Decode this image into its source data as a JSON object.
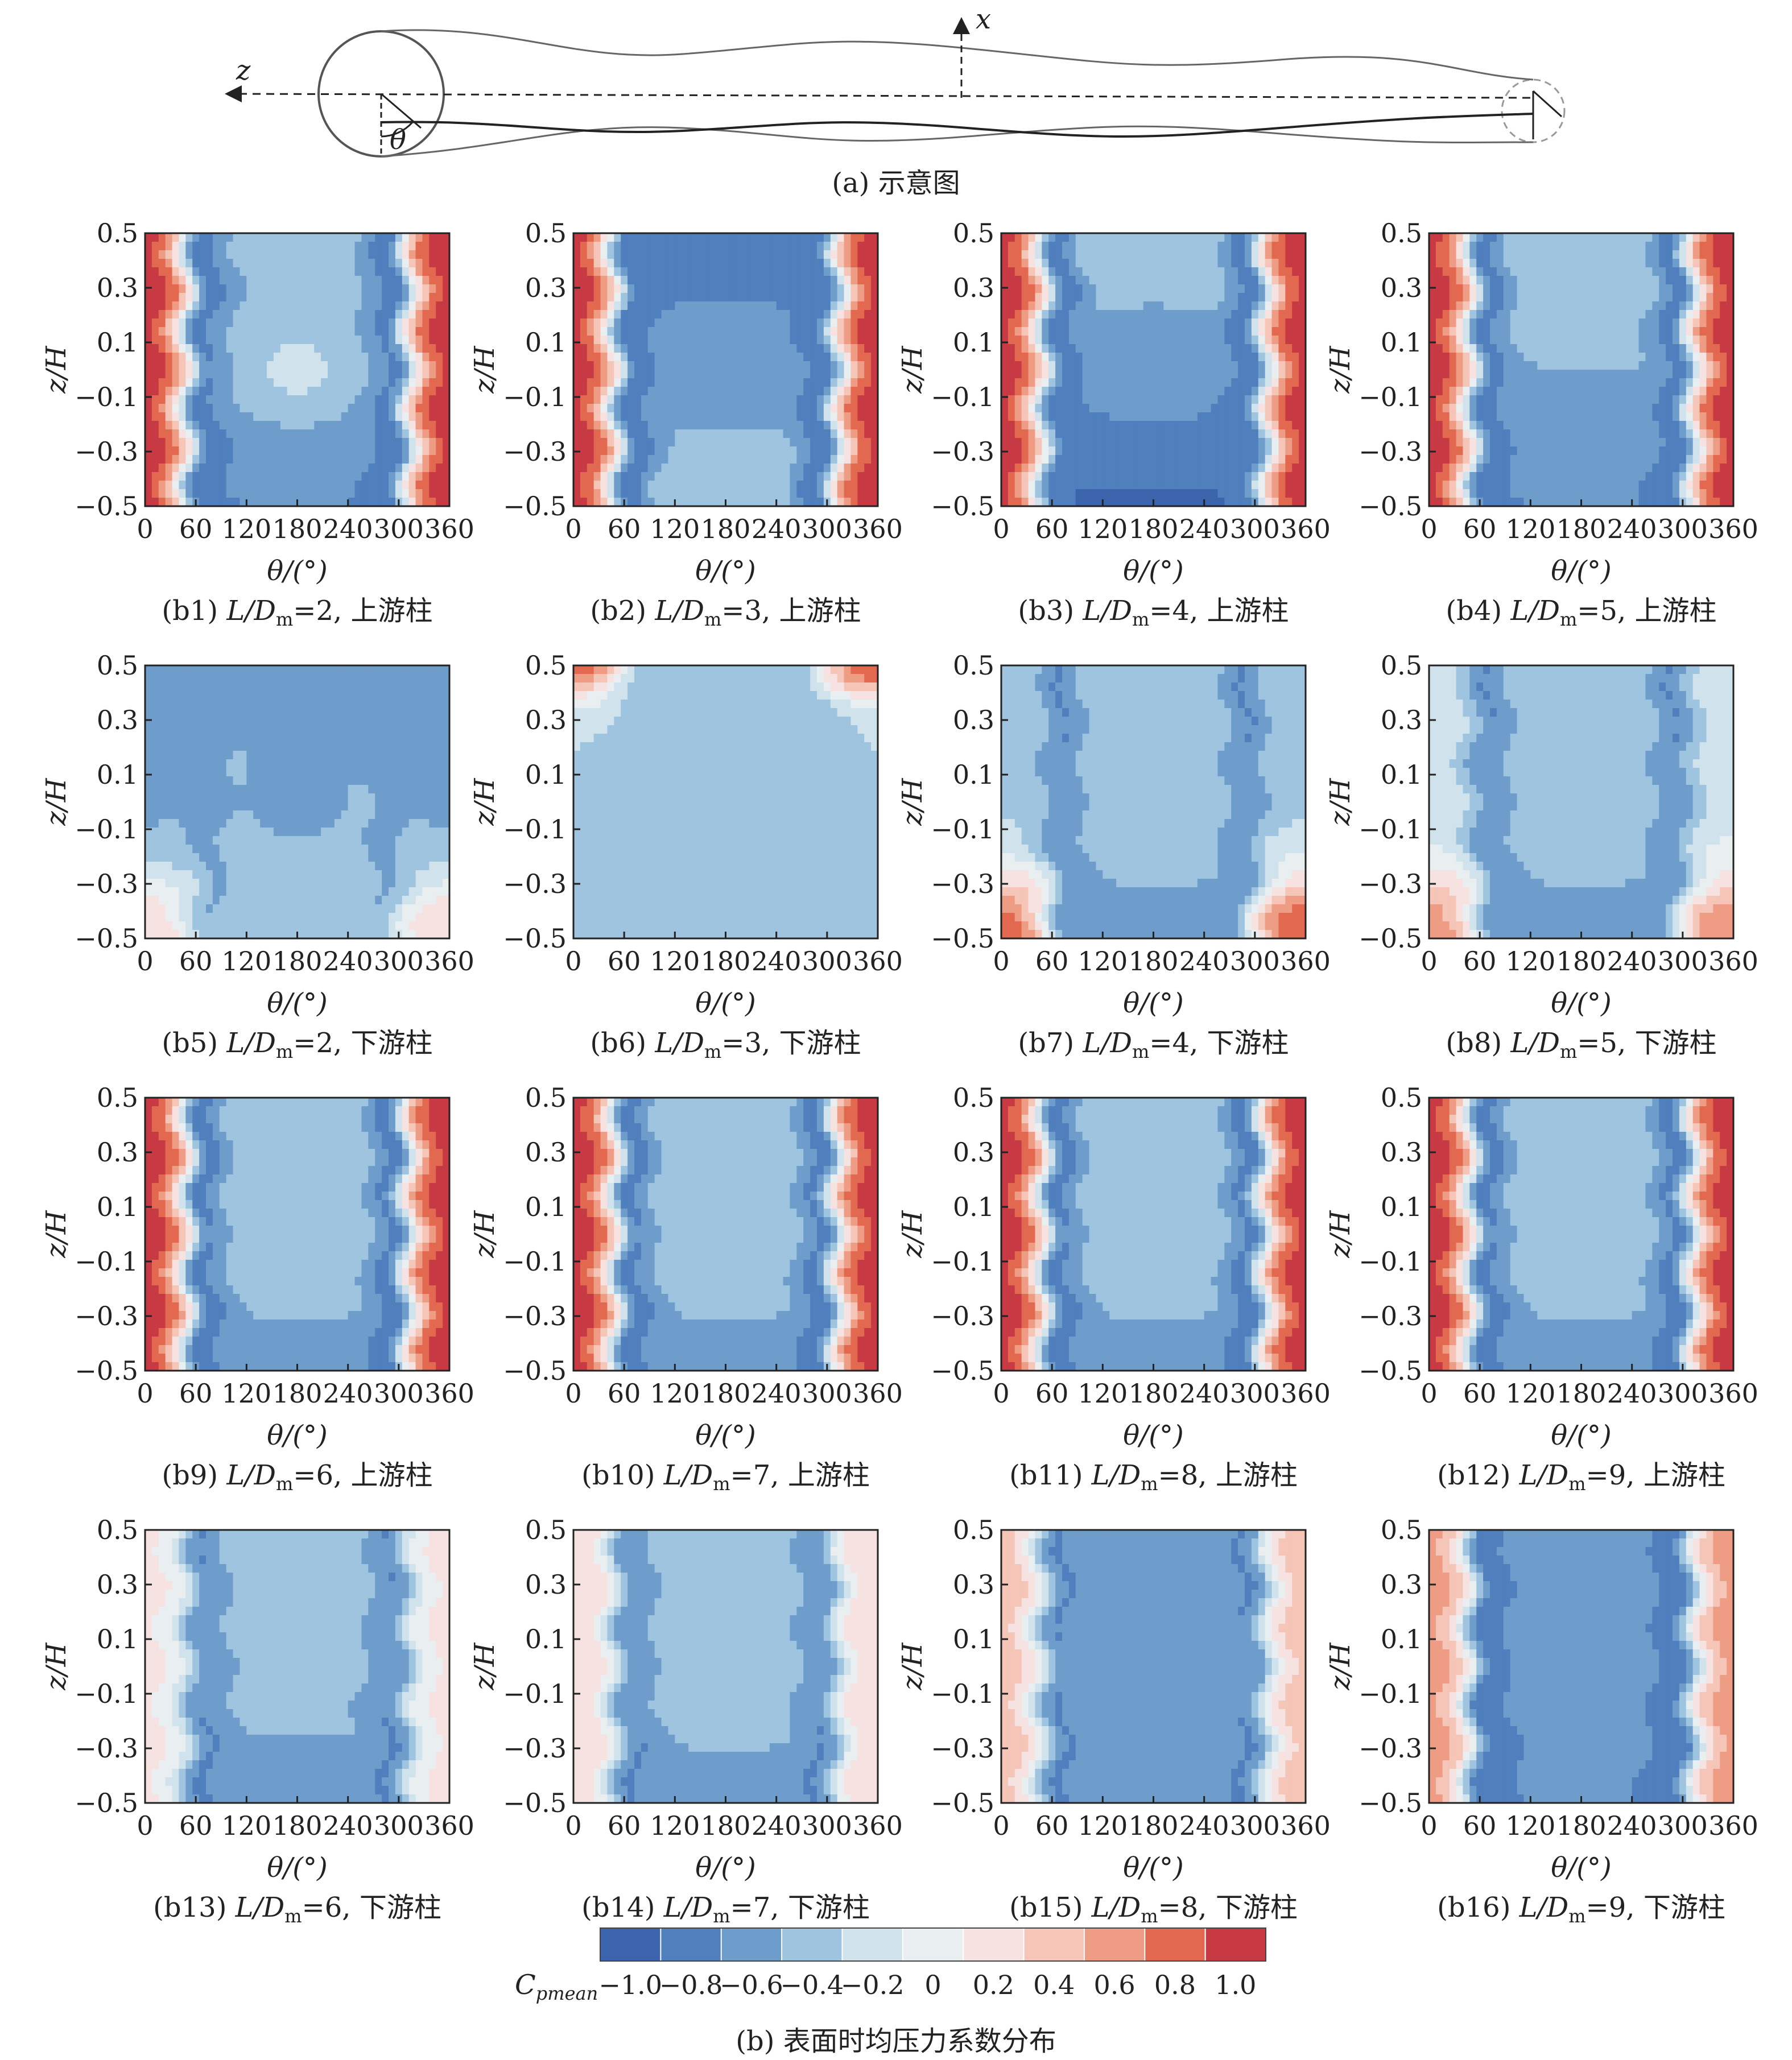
{
  "schematic": {
    "caption": "(a) 示意图",
    "z_label": "z",
    "x_label": "x",
    "theta_label": "θ"
  },
  "chart_data": {
    "type": "heatmap",
    "panel_grid": {
      "rows": 4,
      "cols": 4
    },
    "xlabel": "θ/(°)",
    "ylabel": "z/H",
    "xlim": [
      0,
      360
    ],
    "ylim": [
      -0.5,
      0.5
    ],
    "xticks": [
      "0",
      "60",
      "120",
      "180",
      "240",
      "300",
      "360"
    ],
    "yticks": [
      "0.5",
      "0.3",
      "0.1",
      "-0.1",
      "-0.3",
      "-0.5"
    ],
    "panels": [
      {
        "id": "b1",
        "ratio": "2",
        "position": "上游柱",
        "front": 1.0,
        "shoulder": -0.85,
        "base_top": -0.45,
        "base_bot": -0.7,
        "patch": -0.2
      },
      {
        "id": "b2",
        "ratio": "3",
        "position": "上游柱",
        "front": 1.0,
        "shoulder": -0.9,
        "base_top": -0.85,
        "base_bot": -0.35,
        "patch": -0.55
      },
      {
        "id": "b3",
        "ratio": "4",
        "position": "上游柱",
        "front": 1.0,
        "shoulder": -0.85,
        "base_top": -0.3,
        "base_bot": -0.95,
        "patch": -0.6
      },
      {
        "id": "b4",
        "ratio": "5",
        "position": "上游柱",
        "front": 1.0,
        "shoulder": -0.85,
        "base_top": -0.3,
        "base_bot": -0.7,
        "patch": -0.5
      },
      {
        "id": "b5",
        "ratio": "2",
        "position": "下游柱",
        "front": -0.55,
        "shoulder": -0.6,
        "base_top": -0.55,
        "base_bot": -0.35,
        "patch": -0.55,
        "edge_bottom": 0.25
      },
      {
        "id": "b6",
        "ratio": "3",
        "position": "下游柱",
        "front": -0.3,
        "shoulder": -0.45,
        "base_top": -0.35,
        "base_bot": -0.35,
        "patch": -0.5,
        "edge_top": 0.7
      },
      {
        "id": "b7",
        "ratio": "4",
        "position": "下游柱",
        "front": -0.35,
        "shoulder": -0.75,
        "base_top": -0.35,
        "base_bot": -0.55,
        "patch": -0.35,
        "edge_bottom": 0.75
      },
      {
        "id": "b8",
        "ratio": "5",
        "position": "下游柱",
        "front": -0.2,
        "shoulder": -0.75,
        "base_top": -0.35,
        "base_bot": -0.55,
        "patch": -0.35,
        "edge_bottom": 0.6
      },
      {
        "id": "b9",
        "ratio": "6",
        "position": "上游柱",
        "front": 1.0,
        "shoulder": -0.85,
        "base_top": -0.35,
        "base_bot": -0.55,
        "patch": -0.3
      },
      {
        "id": "b10",
        "ratio": "7",
        "position": "上游柱",
        "front": 1.0,
        "shoulder": -0.85,
        "base_top": -0.35,
        "base_bot": -0.55,
        "patch": -0.3
      },
      {
        "id": "b11",
        "ratio": "8",
        "position": "上游柱",
        "front": 1.0,
        "shoulder": -0.85,
        "base_top": -0.35,
        "base_bot": -0.55,
        "patch": -0.3
      },
      {
        "id": "b12",
        "ratio": "9",
        "position": "上游柱",
        "front": 1.0,
        "shoulder": -0.85,
        "base_top": -0.35,
        "base_bot": -0.55,
        "patch": -0.3
      },
      {
        "id": "b13",
        "ratio": "6",
        "position": "下游柱",
        "front": 0.15,
        "shoulder": -0.75,
        "base_top": -0.35,
        "base_bot": -0.55,
        "patch": -0.5
      },
      {
        "id": "b14",
        "ratio": "7",
        "position": "下游柱",
        "front": 0.3,
        "shoulder": -0.75,
        "base_top": -0.35,
        "base_bot": -0.55,
        "patch": -0.35
      },
      {
        "id": "b15",
        "ratio": "8",
        "position": "下游柱",
        "front": 0.4,
        "shoulder": -0.75,
        "base_top": -0.55,
        "base_bot": -0.6,
        "patch": -0.55
      },
      {
        "id": "b16",
        "ratio": "9",
        "position": "下游柱",
        "front": 0.6,
        "shoulder": -0.9,
        "base_top": -0.55,
        "base_bot": -0.7,
        "patch": -0.6
      }
    ],
    "colorbar": {
      "label_main": "C",
      "label_sub": "pmean",
      "levels": [
        -1.1,
        -0.9,
        -0.7,
        -0.5,
        -0.3,
        -0.1,
        0.1,
        0.3,
        0.5,
        0.7,
        0.9,
        1.1
      ],
      "colors": [
        "#3b64ad",
        "#507fbd",
        "#6f9dcb",
        "#9ec4df",
        "#d0e3ed",
        "#e9eef1",
        "#f6e3e1",
        "#f5c5b7",
        "#ee9d84",
        "#e2694f",
        "#c73a44",
        "#a91d35"
      ],
      "tick_labels": [
        "-1.0",
        "-0.8",
        "-0.6",
        "-0.4",
        "-0.2",
        "0",
        "0.2",
        "0.4",
        "0.6",
        "0.8",
        "1.0"
      ],
      "tick_values": [
        -1.0,
        -0.8,
        -0.6,
        -0.4,
        -0.2,
        0,
        0.2,
        0.4,
        0.6,
        0.8,
        1.0
      ]
    },
    "caption": "(b) 表面时均压力系数分布"
  }
}
